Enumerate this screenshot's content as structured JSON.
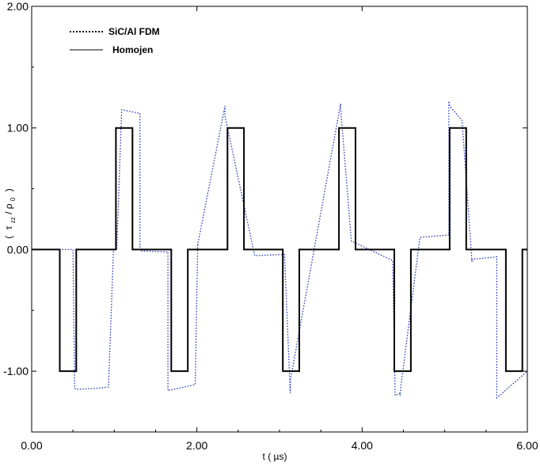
{
  "chart_data": {
    "type": "line",
    "xlabel": "t ( µs)",
    "ylabel_parts": {
      "open": "(",
      "tau": "τ",
      "tau_sub": "zz",
      "slash": " / ",
      "rho": "ρ",
      "rho_sub": "0",
      "close": ")"
    },
    "xlim": [
      0,
      6
    ],
    "ylim": [
      -1.5,
      2
    ],
    "x_ticks": [
      0,
      2,
      4,
      6
    ],
    "x_tick_labels": [
      "0.00",
      "2.00",
      "4.00",
      "6.00"
    ],
    "y_ticks": [
      -1,
      0,
      1,
      2
    ],
    "y_tick_labels": [
      "-1.00",
      "0.00",
      "1.00",
      "2.00"
    ],
    "grid": false,
    "legend_position": "top-left",
    "series": [
      {
        "name": "SiC/Al FDM",
        "style": "dotted",
        "color": "#2233bb",
        "x": [
          0,
          0.5,
          0.52,
          0.54,
          0.8,
          0.93,
          0.99,
          1.02,
          1.02,
          1.03,
          1.09,
          1.31,
          1.31,
          1.65,
          1.65,
          1.98,
          2.01,
          2.01,
          2.34,
          2.34,
          2.7,
          3.06,
          3.13,
          3.13,
          3.74,
          3.74,
          3.87,
          4.37,
          4.4,
          4.46,
          4.46,
          4.47,
          4.7,
          5.05,
          5.05,
          5.06,
          5.21,
          5.33,
          5.33,
          5.63,
          5.63,
          6.0
        ],
        "y": [
          0.0,
          0.0,
          -1.14,
          -1.15,
          -1.14,
          -1.13,
          -0.01,
          0.01,
          0.01,
          0.01,
          1.15,
          1.12,
          -0.01,
          -0.02,
          -1.16,
          -1.11,
          0.05,
          0.04,
          1.18,
          1.1,
          -0.05,
          -0.04,
          -1.18,
          -1.08,
          1.2,
          1.16,
          0.07,
          -0.09,
          -1.2,
          -1.18,
          -1.2,
          -1.12,
          0.1,
          0.12,
          1.22,
          1.18,
          1.06,
          -0.1,
          -0.08,
          -0.06,
          -1.22,
          -1.0
        ]
      },
      {
        "name": "Homojen",
        "style": "solid",
        "color": "#000000",
        "x": [
          0,
          0.34,
          0.34,
          0.54,
          0.54,
          1.02,
          1.02,
          1.22,
          1.22,
          1.69,
          1.69,
          1.89,
          1.89,
          2.37,
          2.37,
          2.57,
          2.57,
          3.04,
          3.04,
          3.24,
          3.24,
          3.72,
          3.72,
          3.92,
          3.92,
          4.39,
          4.39,
          4.59,
          4.59,
          5.06,
          5.06,
          5.26,
          5.26,
          5.74,
          5.74,
          5.94,
          5.94,
          6.0
        ],
        "y": [
          0,
          0,
          -1,
          -1,
          0,
          0,
          1,
          1,
          0,
          0,
          -1,
          -1,
          0,
          0,
          1,
          1,
          0,
          0,
          -1,
          -1,
          0,
          0,
          1,
          1,
          0,
          0,
          -1,
          -1,
          0,
          0,
          1,
          1,
          0,
          0,
          -1,
          -1,
          0,
          0
        ]
      }
    ]
  }
}
